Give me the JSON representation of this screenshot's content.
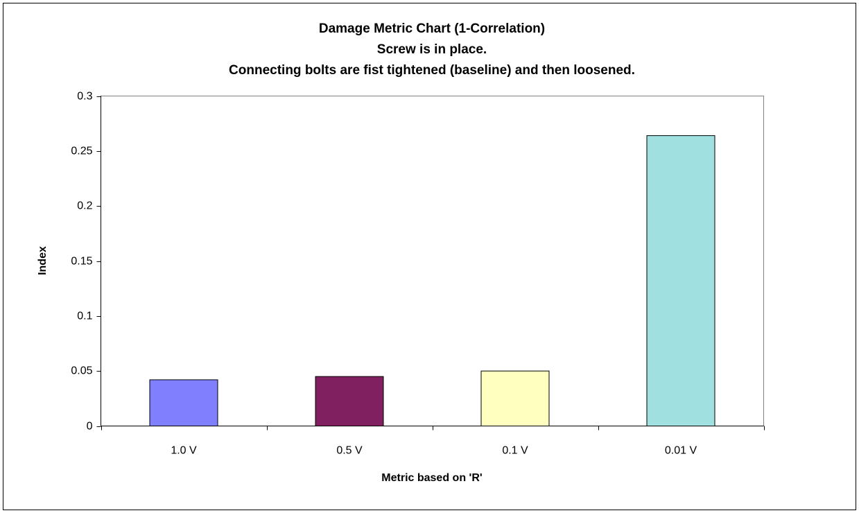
{
  "chart_data": {
    "type": "bar",
    "title": [
      "Damage Metric Chart (1-Correlation)",
      "Screw is in place.",
      "Connecting bolts are fist tightened (baseline) and then loosened."
    ],
    "x_label": "Metric based on 'R'",
    "y_label": "Index",
    "categories": [
      "1.0 V",
      "0.5 V",
      "0.1 V",
      "0.01 V"
    ],
    "values": [
      0.042,
      0.045,
      0.05,
      0.264
    ],
    "colors": [
      "#8080ff",
      "#802060",
      "#ffffc0",
      "#a0e0e0"
    ],
    "ylim": [
      0,
      0.3
    ],
    "yticks": [
      0,
      0.05,
      0.1,
      0.15,
      0.2,
      0.25,
      0.3
    ],
    "grid": false
  }
}
